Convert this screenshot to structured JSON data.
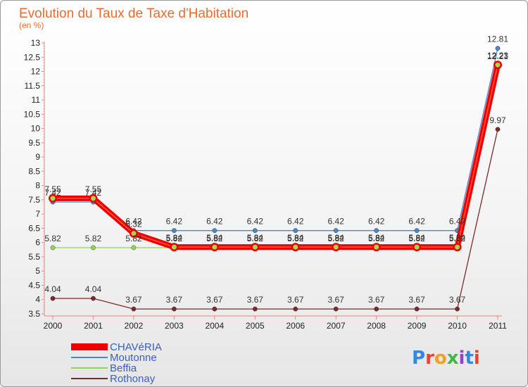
{
  "chart_data": {
    "type": "line",
    "title": "Evolution du Taux de Taxe d'Habitation",
    "subtitle": "(en %)",
    "xlabel": "",
    "ylabel": "",
    "ylim": [
      3.5,
      13
    ],
    "grid": false,
    "categories": [
      "2000",
      "2001",
      "2002",
      "2003",
      "2004",
      "2005",
      "2006",
      "2007",
      "2008",
      "2009",
      "2010",
      "2011"
    ],
    "y_ticks": [
      "3.5",
      "4",
      "4.5",
      "5",
      "5.5",
      "6",
      "6.5",
      "7",
      "7.5",
      "8",
      "8.5",
      "9",
      "9.5",
      "10",
      "10.5",
      "11",
      "11.5",
      "12",
      "12.5",
      "13"
    ],
    "series": [
      {
        "name": "Rothonay",
        "color": "#7a2a2a",
        "values": [
          4.04,
          4.04,
          3.67,
          3.67,
          3.67,
          3.67,
          3.67,
          3.67,
          3.67,
          3.67,
          3.67,
          9.97
        ],
        "labels": [
          "4.04",
          "4.04",
          "3.67",
          "3.67",
          "3.67",
          "3.67",
          "3.67",
          "3.67",
          "3.67",
          "3.67",
          "3.67",
          "9.97"
        ]
      },
      {
        "name": "Beffia",
        "color": "#8fd35a",
        "values": [
          5.82,
          5.82,
          5.82,
          5.82,
          5.82,
          5.82,
          5.82,
          5.82,
          5.82,
          5.82,
          5.82,
          12.21
        ],
        "labels": [
          "5.82",
          "5.82",
          "5.82",
          "5.82",
          "5.82",
          "5.82",
          "5.82",
          "5.82",
          "5.82",
          "5.82",
          "5.82",
          "12.21"
        ]
      },
      {
        "name": "Moutonne",
        "color": "#4a86c8",
        "values": [
          7.42,
          7.42,
          6.42,
          6.42,
          6.42,
          6.42,
          6.42,
          6.42,
          6.42,
          6.42,
          6.42,
          12.81
        ],
        "labels": [
          "7.42",
          "7.42",
          "6.42",
          "6.42",
          "6.42",
          "6.42",
          "6.42",
          "6.42",
          "6.42",
          "6.42",
          "6.42",
          "12.81"
        ]
      },
      {
        "name": "CHAVéRIA",
        "color": "#ee0000",
        "values": [
          7.55,
          7.55,
          6.32,
          5.84,
          5.84,
          5.84,
          5.84,
          5.84,
          5.84,
          5.84,
          5.84,
          12.23
        ],
        "labels": [
          "7.55",
          "7.55",
          "6.32",
          "5.84",
          "5.84",
          "5.84",
          "5.84",
          "5.84",
          "5.84",
          "5.84",
          "5.84",
          "12.23"
        ]
      }
    ],
    "legend": {
      "placement": "bottom-left",
      "entries": [
        "CHAVéRIA",
        "Moutonne",
        "Beffia",
        "Rothonay"
      ]
    }
  },
  "logo": {
    "text": "Proxiti"
  }
}
